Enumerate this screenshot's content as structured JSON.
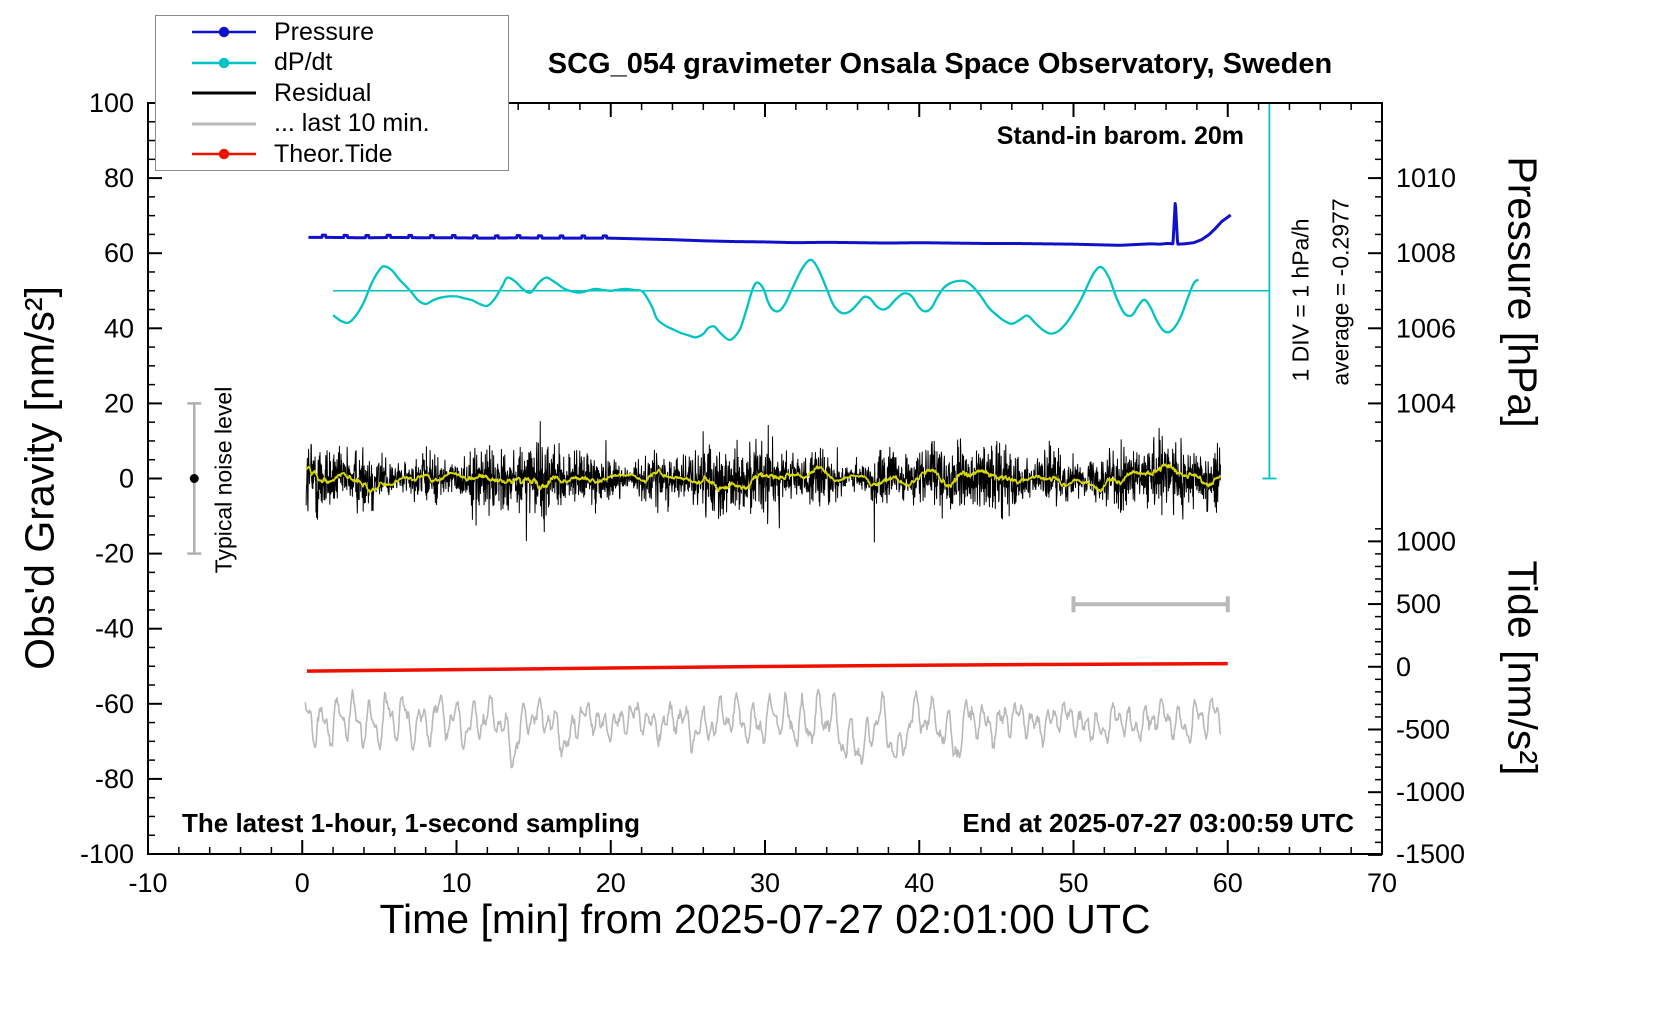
{
  "title": "SCG_054 gravimeter Onsala Space Observatory, Sweden",
  "annotations": {
    "barometer": "Stand-in barom. 20m",
    "div_scale": "1 DIV = 1 hPa/h",
    "average": "average = -0.2977",
    "noise_label": "Typical noise level",
    "sampling": "The latest 1-hour, 1-second sampling",
    "end_time": "End at 2025-07-27 03:00:59 UTC"
  },
  "axes": {
    "x": {
      "label": "Time [min] from 2025-07-27 02:01:00 UTC",
      "min": -10,
      "max": 70,
      "major_ticks": [
        -10,
        0,
        10,
        20,
        30,
        40,
        50,
        60,
        70
      ],
      "minor_step": 2
    },
    "y_left": {
      "label": "Obs'd Gravity [nm/s²]",
      "min": -100,
      "max": 100,
      "major_ticks": [
        100,
        80,
        60,
        40,
        20,
        0,
        -20,
        -40,
        -60,
        -80,
        -100
      ],
      "minor_step": 5
    },
    "y_right_pressure": {
      "label": "Pressure [hPa]",
      "major_ticks": [
        1010,
        1008,
        1006,
        1004
      ],
      "minor_step": 0.5
    },
    "y_right_tide": {
      "label": "Tide [nm/s²]",
      "major_ticks": [
        1000,
        500,
        0,
        -500,
        -1000,
        -1500
      ],
      "minor_step": 100
    }
  },
  "legend": {
    "items": [
      {
        "label": "Pressure",
        "color": "#1111cc",
        "marker": true
      },
      {
        "label": "dP/dt",
        "color": "#00c3c3",
        "marker": true
      },
      {
        "label": "Residual",
        "color": "#000000",
        "marker": false
      },
      {
        "label": "... last 10 min.",
        "color": "#b9b9b9",
        "marker": false
      },
      {
        "label": "Theor.Tide",
        "color": "#ee1100",
        "marker": true
      }
    ]
  },
  "chart_data": {
    "type": "line",
    "title": "SCG_054 gravimeter Onsala Space Observatory, Sweden",
    "xlabel": "Time [min] from 2025-07-27 02:01:00 UTC",
    "x_range": [
      -10,
      70
    ],
    "y_left_range": [
      -100,
      100
    ],
    "grid": false,
    "legend_position": "top-left",
    "series": [
      {
        "name": "Pressure",
        "color": "#1111cc",
        "units": "hPa",
        "axis": "right_pressure",
        "points": [
          [
            0.4,
            1008.42
          ],
          [
            2,
            1008.42
          ],
          [
            4,
            1008.41
          ],
          [
            6,
            1008.42
          ],
          [
            8,
            1008.41
          ],
          [
            10,
            1008.41
          ],
          [
            12,
            1008.4
          ],
          [
            14,
            1008.41
          ],
          [
            16,
            1008.4
          ],
          [
            18,
            1008.4
          ],
          [
            20,
            1008.4
          ],
          [
            22,
            1008.38
          ],
          [
            24,
            1008.36
          ],
          [
            26,
            1008.33
          ],
          [
            28,
            1008.31
          ],
          [
            30,
            1008.3
          ],
          [
            32,
            1008.28
          ],
          [
            34,
            1008.29
          ],
          [
            36,
            1008.28
          ],
          [
            38,
            1008.27
          ],
          [
            40,
            1008.28
          ],
          [
            42,
            1008.27
          ],
          [
            44,
            1008.26
          ],
          [
            46,
            1008.26
          ],
          [
            48,
            1008.25
          ],
          [
            50,
            1008.24
          ],
          [
            52,
            1008.22
          ],
          [
            53,
            1008.21
          ],
          [
            54,
            1008.23
          ],
          [
            55,
            1008.25
          ],
          [
            55.6,
            1008.24
          ],
          [
            56.1,
            1008.26
          ],
          [
            56.45,
            1008.25
          ],
          [
            56.6,
            1009.4
          ],
          [
            56.75,
            1008.24
          ],
          [
            57.2,
            1008.25
          ],
          [
            57.8,
            1008.28
          ],
          [
            58.3,
            1008.36
          ],
          [
            58.8,
            1008.5
          ],
          [
            59.2,
            1008.66
          ],
          [
            59.6,
            1008.84
          ],
          [
            60.2,
            1009.02
          ]
        ],
        "bumps": {
          "x_positions": [
            1.3,
            2.7,
            4.1,
            5.5,
            6.9,
            8.3,
            9.7,
            11.1,
            12.5,
            13.9,
            15.3,
            16.7,
            18.1,
            19.5
          ],
          "height_hpa": 0.06,
          "width_min": 0.22
        }
      },
      {
        "name": "dP/dt",
        "color": "#00c3c3",
        "axis": "left_gravity_display",
        "units": "1 DIV = 1 hPa/h, reference level at left-axis 50, 1 DIV = 20 left-axis units",
        "points": [
          [
            2,
            43.5
          ],
          [
            2.5,
            42
          ],
          [
            3,
            41.5
          ],
          [
            3.5,
            43.5
          ],
          [
            4,
            47
          ],
          [
            4.5,
            52
          ],
          [
            5,
            55.5
          ],
          [
            5.3,
            56.5
          ],
          [
            5.8,
            55.5
          ],
          [
            6.3,
            53
          ],
          [
            7,
            50
          ],
          [
            7.5,
            47.5
          ],
          [
            8,
            46.5
          ],
          [
            8.5,
            47.5
          ],
          [
            9,
            48.2
          ],
          [
            9.5,
            48.5
          ],
          [
            10,
            48.5
          ],
          [
            10.5,
            48
          ],
          [
            11,
            47.5
          ],
          [
            11.5,
            46.5
          ],
          [
            12,
            46
          ],
          [
            12.5,
            48
          ],
          [
            13,
            51.5
          ],
          [
            13.3,
            53.5
          ],
          [
            13.8,
            52.5
          ],
          [
            14.3,
            50.5
          ],
          [
            14.8,
            49.5
          ],
          [
            15.3,
            52
          ],
          [
            15.8,
            53.5
          ],
          [
            16.3,
            52.5
          ],
          [
            17,
            50.5
          ],
          [
            17.5,
            49.8
          ],
          [
            18,
            49.5
          ],
          [
            18.5,
            50
          ],
          [
            19,
            50.5
          ],
          [
            19.5,
            50.2
          ],
          [
            20,
            50
          ],
          [
            20.5,
            50.3
          ],
          [
            21,
            50.5
          ],
          [
            21.5,
            50.2
          ],
          [
            22,
            50
          ],
          [
            22.3,
            48.5
          ],
          [
            22.7,
            45.5
          ],
          [
            23,
            42.5
          ],
          [
            23.5,
            40.8
          ],
          [
            24,
            39.8
          ],
          [
            24.5,
            38.8
          ],
          [
            25,
            38.2
          ],
          [
            25.5,
            37.6
          ],
          [
            26,
            38.5
          ],
          [
            26.3,
            40
          ],
          [
            26.7,
            40.5
          ],
          [
            27,
            39.2
          ],
          [
            27.4,
            37.6
          ],
          [
            27.7,
            36.9
          ],
          [
            28,
            37.6
          ],
          [
            28.4,
            40
          ],
          [
            28.8,
            45
          ],
          [
            29.2,
            50.5
          ],
          [
            29.5,
            52.2
          ],
          [
            29.9,
            50.5
          ],
          [
            30.2,
            47
          ],
          [
            30.5,
            45
          ],
          [
            30.9,
            44.6
          ],
          [
            31.3,
            46.5
          ],
          [
            31.7,
            50
          ],
          [
            32.1,
            53.5
          ],
          [
            32.5,
            56.5
          ],
          [
            32.9,
            58.2
          ],
          [
            33.2,
            57.5
          ],
          [
            33.6,
            54.5
          ],
          [
            34,
            50.5
          ],
          [
            34.4,
            46.5
          ],
          [
            34.8,
            44.5
          ],
          [
            35.2,
            44
          ],
          [
            35.6,
            44.8
          ],
          [
            36,
            46.5
          ],
          [
            36.4,
            48.3
          ],
          [
            36.8,
            48
          ],
          [
            37.2,
            46
          ],
          [
            37.6,
            45
          ],
          [
            38,
            45.6
          ],
          [
            38.5,
            47.8
          ],
          [
            39,
            49.3
          ],
          [
            39.5,
            48.6
          ],
          [
            40,
            45.5
          ],
          [
            40.4,
            44.5
          ],
          [
            40.8,
            45.5
          ],
          [
            41.2,
            48.5
          ],
          [
            41.6,
            50.8
          ],
          [
            42,
            52
          ],
          [
            42.5,
            52.6
          ],
          [
            43,
            52.5
          ],
          [
            43.5,
            51
          ],
          [
            44,
            48.5
          ],
          [
            44.5,
            45.5
          ],
          [
            45,
            43.6
          ],
          [
            45.5,
            42
          ],
          [
            46,
            41.2
          ],
          [
            46.5,
            42.2
          ],
          [
            47,
            43.4
          ],
          [
            47.5,
            41.5
          ],
          [
            48,
            39.6
          ],
          [
            48.5,
            38.6
          ],
          [
            49,
            39.2
          ],
          [
            49.5,
            41.2
          ],
          [
            50,
            44.2
          ],
          [
            50.5,
            47.8
          ],
          [
            51,
            52.2
          ],
          [
            51.4,
            55.2
          ],
          [
            51.8,
            56.3
          ],
          [
            52.3,
            53.5
          ],
          [
            52.8,
            48
          ],
          [
            53.3,
            44
          ],
          [
            53.8,
            43.5
          ],
          [
            54.2,
            46
          ],
          [
            54.6,
            47.6
          ],
          [
            55,
            45.5
          ],
          [
            55.4,
            42
          ],
          [
            55.8,
            39.5
          ],
          [
            56.2,
            39
          ],
          [
            56.6,
            40.5
          ],
          [
            57,
            43.5
          ],
          [
            57.4,
            48
          ],
          [
            57.8,
            52
          ],
          [
            58.1,
            53
          ]
        ]
      },
      {
        "name": "Residual",
        "color": "#000000",
        "axis": "left_gravity",
        "units": "nm/s²",
        "noise_model": {
          "x_start": 0.25,
          "x_end": 59.55,
          "dx": 0.02,
          "seed": 12345,
          "sigma_base": 3.6,
          "sigma_mod": [
            [
              0.45,
              1.2,
              1.1
            ],
            [
              1.7,
              0.3,
              0.9
            ]
          ],
          "spike_probability": 0.004,
          "clamp": 21
        }
      },
      {
        "name": "Residual smoothed",
        "color": "#d8d800",
        "axis": "left_gravity",
        "units": "nm/s²",
        "derived": "moving average of Residual",
        "wiggle": [
          [
            0.55,
            2.0,
            0.9
          ],
          [
            1.9,
            0.7,
            0.6
          ]
        ]
      },
      {
        "name": "... last 10 min.",
        "color": "#b9b9b9",
        "axis": "left_gravity_display",
        "units": "residual of last 10 min replotted, baseline at left-axis -64.5",
        "model": {
          "x_start": 0.2,
          "x_end": 59.55,
          "dx": 0.05,
          "seed": 777,
          "baseline": -64.5,
          "dips": [
            [
              13.6,
              -7
            ],
            [
              17.1,
              -6
            ],
            [
              25.2,
              -4
            ],
            [
              35.3,
              -6
            ],
            [
              36.4,
              -10
            ],
            [
              38.6,
              -9
            ],
            [
              42.4,
              -8
            ],
            [
              52,
              -4
            ]
          ]
        }
      },
      {
        "name": "Theor.Tide",
        "color": "#ee1100",
        "axis": "right_tide",
        "units": "nm/s² (tide axis, ~0)",
        "points_left_axis": [
          [
            0.3,
            -51.3
          ],
          [
            5,
            -51.1
          ],
          [
            10,
            -50.9
          ],
          [
            15,
            -50.7
          ],
          [
            20,
            -50.45
          ],
          [
            25,
            -50.25
          ],
          [
            30,
            -50.05
          ],
          [
            35,
            -49.9
          ],
          [
            40,
            -49.75
          ],
          [
            45,
            -49.6
          ],
          [
            50,
            -49.5
          ],
          [
            55,
            -49.4
          ],
          [
            60,
            -49.3
          ]
        ]
      }
    ],
    "markers": {
      "dpdt_reference_line": {
        "gravity": 50,
        "x_from": 2,
        "x_to": 62.7
      },
      "dpdt_scale_bar": {
        "x": 62.7,
        "gravity_from": 0,
        "gravity_to": 100
      },
      "last10_span_bar": {
        "x_from": 50,
        "x_to": 60,
        "gravity_y": -33.5
      },
      "noise_level_bar": {
        "x": -7,
        "gravity_from": -20,
        "gravity_to": 20,
        "dot_gravity": 0
      }
    }
  }
}
